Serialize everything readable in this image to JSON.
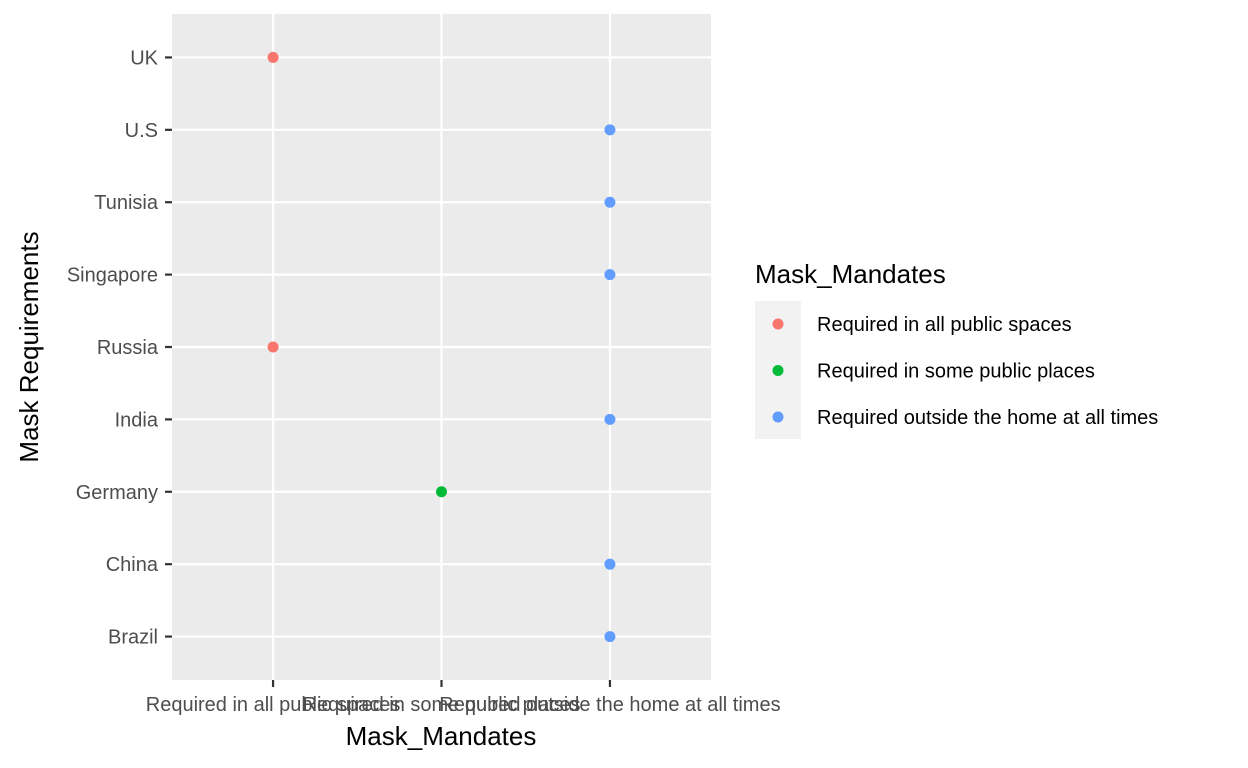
{
  "chart_data": {
    "type": "scatter",
    "xlabel": "Mask_Mandates",
    "ylabel": "Mask Requirements",
    "x_categories": [
      "Required in all public spaces",
      "Required in some public places",
      "Required outside the home at all times"
    ],
    "y_categories": [
      "Brazil",
      "China",
      "Germany",
      "India",
      "Russia",
      "Singapore",
      "Tunisia",
      "U.S",
      "UK"
    ],
    "points": [
      {
        "y": "UK",
        "x": "Required in all public spaces"
      },
      {
        "y": "U.S",
        "x": "Required outside the home at all times"
      },
      {
        "y": "Tunisia",
        "x": "Required outside the home at all times"
      },
      {
        "y": "Singapore",
        "x": "Required outside the home at all times"
      },
      {
        "y": "Russia",
        "x": "Required in all public spaces"
      },
      {
        "y": "India",
        "x": "Required outside the home at all times"
      },
      {
        "y": "Germany",
        "x": "Required in some public places"
      },
      {
        "y": "China",
        "x": "Required outside the home at all times"
      },
      {
        "y": "Brazil",
        "x": "Required outside the home at all times"
      }
    ],
    "legend": {
      "title": "Mask_Mandates",
      "position": "right",
      "entries": [
        {
          "label": "Required in all public spaces",
          "color": "#F8766D"
        },
        {
          "label": "Required in some public places",
          "color": "#00BA38"
        },
        {
          "label": "Required outside the home at all times",
          "color": "#619CFF"
        }
      ]
    },
    "grid": true,
    "panel_color": "#EBEBEB"
  }
}
